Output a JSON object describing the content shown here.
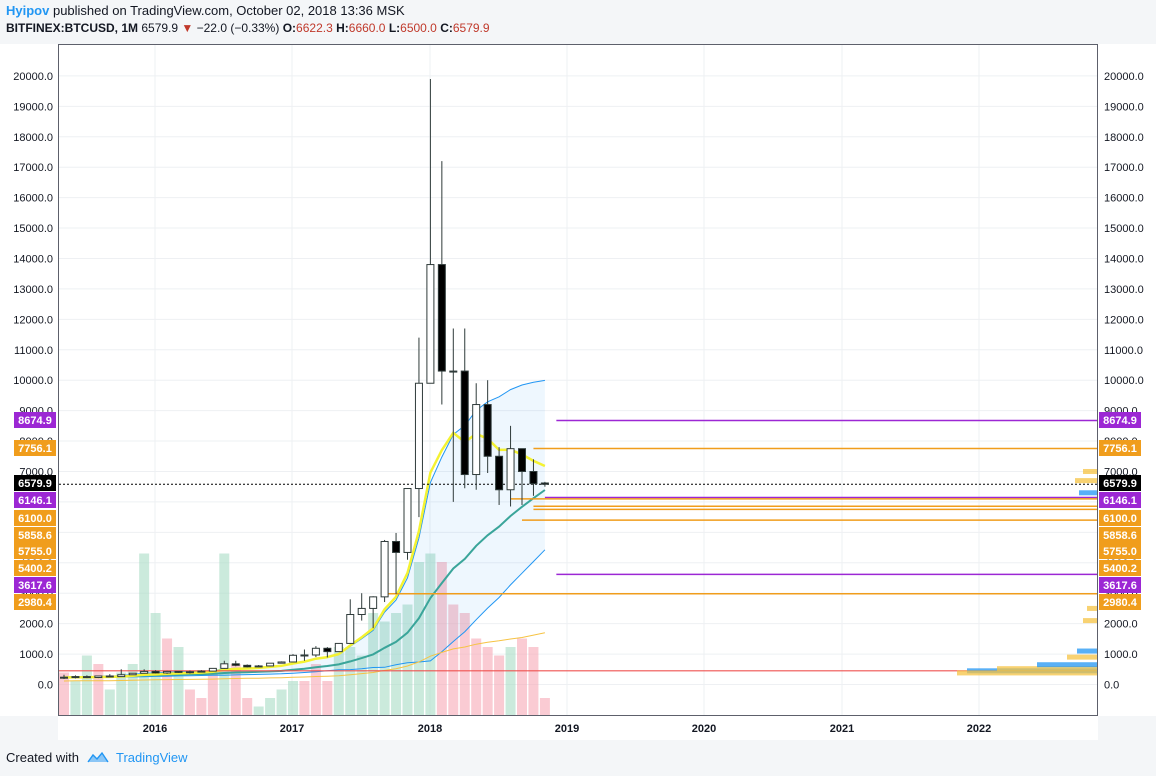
{
  "header": {
    "author": "Hyipov",
    "published": "published on TradingView.com, October 02, 2018 13:36 MSK"
  },
  "symbol": {
    "ticker": "BITFINEX:BTCUSD, 1M",
    "price": "6579.9",
    "change": "−22.0 (−0.33%)",
    "o_label": "O:",
    "o": "6622.3",
    "h_label": "H:",
    "h": "6660.0",
    "l_label": "L:",
    "l": "6500.0",
    "c_label": "C:",
    "c": "6579.9"
  },
  "footer": {
    "created": "Created with",
    "brand": "TradingView"
  },
  "chart_data": {
    "type": "candlestick",
    "ylim": [
      -1000,
      21000
    ],
    "y_ticks": [
      "20000.0",
      "19000.0",
      "18000.0",
      "17000.0",
      "16000.0",
      "15000.0",
      "14000.0",
      "13000.0",
      "12000.0",
      "11000.0",
      "10000.0",
      "9000.0",
      "8000.0",
      "7000.0",
      "6000.0",
      "5000.0",
      "4000.0",
      "3000.0",
      "2000.0",
      "1000.0",
      "0.0"
    ],
    "x_ticks": [
      "2016",
      "2017",
      "2018",
      "2019",
      "2020",
      "2021",
      "2022"
    ],
    "candles": [
      {
        "o": 240,
        "h": 320,
        "l": 180,
        "c": 230
      },
      {
        "o": 230,
        "h": 300,
        "l": 200,
        "c": 260
      },
      {
        "o": 260,
        "h": 300,
        "l": 210,
        "c": 230
      },
      {
        "o": 230,
        "h": 290,
        "l": 210,
        "c": 280
      },
      {
        "o": 280,
        "h": 340,
        "l": 250,
        "c": 260
      },
      {
        "o": 260,
        "h": 500,
        "l": 250,
        "c": 320
      },
      {
        "o": 320,
        "h": 350,
        "l": 320,
        "c": 370
      },
      {
        "o": 370,
        "h": 500,
        "l": 360,
        "c": 430
      },
      {
        "o": 430,
        "h": 470,
        "l": 360,
        "c": 380
      },
      {
        "o": 380,
        "h": 450,
        "l": 350,
        "c": 430
      },
      {
        "o": 430,
        "h": 440,
        "l": 380,
        "c": 410
      },
      {
        "o": 410,
        "h": 460,
        "l": 360,
        "c": 420
      },
      {
        "o": 420,
        "h": 470,
        "l": 400,
        "c": 440
      },
      {
        "o": 440,
        "h": 540,
        "l": 430,
        "c": 530
      },
      {
        "o": 530,
        "h": 780,
        "l": 520,
        "c": 680
      },
      {
        "o": 680,
        "h": 780,
        "l": 600,
        "c": 630
      },
      {
        "o": 630,
        "h": 660,
        "l": 560,
        "c": 580
      },
      {
        "o": 580,
        "h": 640,
        "l": 570,
        "c": 610
      },
      {
        "o": 610,
        "h": 700,
        "l": 600,
        "c": 700
      },
      {
        "o": 700,
        "h": 760,
        "l": 690,
        "c": 740
      },
      {
        "o": 740,
        "h": 1000,
        "l": 730,
        "c": 960
      },
      {
        "o": 960,
        "h": 1150,
        "l": 780,
        "c": 970
      },
      {
        "o": 970,
        "h": 1260,
        "l": 900,
        "c": 1190
      },
      {
        "o": 1190,
        "h": 1230,
        "l": 890,
        "c": 1080
      },
      {
        "o": 1080,
        "h": 1350,
        "l": 1070,
        "c": 1350
      },
      {
        "o": 1350,
        "h": 2800,
        "l": 1340,
        "c": 2300
      },
      {
        "o": 2300,
        "h": 3000,
        "l": 2100,
        "c": 2500
      },
      {
        "o": 2500,
        "h": 2900,
        "l": 1850,
        "c": 2880
      },
      {
        "o": 2880,
        "h": 4750,
        "l": 2710,
        "c": 4700
      },
      {
        "o": 4700,
        "h": 4980,
        "l": 2980,
        "c": 4340
      },
      {
        "o": 4340,
        "h": 6450,
        "l": 4100,
        "c": 6440
      },
      {
        "o": 6440,
        "h": 11400,
        "l": 5500,
        "c": 9900
      },
      {
        "o": 9900,
        "h": 19900,
        "l": 9900,
        "c": 13800
      },
      {
        "o": 13800,
        "h": 17200,
        "l": 9200,
        "c": 10300
      },
      {
        "o": 10300,
        "h": 11700,
        "l": 6000,
        "c": 10300
      },
      {
        "o": 10300,
        "h": 11700,
        "l": 6450,
        "c": 6900
      },
      {
        "o": 6900,
        "h": 9900,
        "l": 6400,
        "c": 9200
      },
      {
        "o": 9200,
        "h": 10000,
        "l": 6950,
        "c": 7500
      },
      {
        "o": 7500,
        "h": 7800,
        "l": 5900,
        "c": 6400
      },
      {
        "o": 6400,
        "h": 8500,
        "l": 5850,
        "c": 7750
      },
      {
        "o": 7750,
        "h": 7750,
        "l": 5900,
        "c": 7000
      },
      {
        "o": 7000,
        "h": 7400,
        "l": 6200,
        "c": 6600
      },
      {
        "o": 6622.3,
        "h": 6660,
        "l": 6500,
        "c": 6579.9
      }
    ],
    "volumes_rel": [
      0.25,
      0.2,
      0.35,
      0.3,
      0.15,
      0.25,
      0.3,
      0.95,
      0.6,
      0.45,
      0.4,
      0.15,
      0.1,
      0.25,
      0.95,
      0.3,
      0.1,
      0.05,
      0.1,
      0.15,
      0.2,
      0.2,
      0.3,
      0.2,
      0.4,
      0.4,
      0.35,
      0.6,
      0.55,
      0.6,
      0.65,
      0.9,
      0.95,
      0.9,
      0.65,
      0.6,
      0.45,
      0.4,
      0.35,
      0.4,
      0.45,
      0.4,
      0.1
    ],
    "vol_up": [
      false,
      true,
      true,
      false,
      true,
      true,
      true,
      true,
      true,
      false,
      true,
      false,
      false,
      false,
      true,
      false,
      false,
      true,
      true,
      true,
      true,
      false,
      false,
      false,
      true,
      true,
      true,
      true,
      true,
      true,
      true,
      true,
      true,
      false,
      false,
      false,
      false,
      false,
      false,
      true,
      false,
      false,
      false
    ],
    "levels": [
      {
        "value": 8674.9,
        "label": "8674.9",
        "color": "#9c27d4",
        "start": 43
      },
      {
        "value": 7756.1,
        "label": "7756.1",
        "color": "#f09d1c",
        "start": 41
      },
      {
        "value": 6579.9,
        "label": "6579.9",
        "color": "#000000",
        "start": 0,
        "dotted": true
      },
      {
        "value": 6146.1,
        "label": "6146.1",
        "color": "#9c27d4",
        "start": 42
      },
      {
        "value": 6100.0,
        "label": "6100.0",
        "color": "#f09d1c",
        "start": 39
      },
      {
        "value": 5858.6,
        "label": "5858.6",
        "color": "#f09d1c",
        "start": 41
      },
      {
        "value": 5755.0,
        "label": "5755.0",
        "color": "#f09d1c",
        "start": 41
      },
      {
        "value": 5400.2,
        "label": "5400.2",
        "color": "#f09d1c",
        "start": 40
      },
      {
        "value": 3617.6,
        "label": "3617.6",
        "color": "#9c27d4",
        "start": 43
      },
      {
        "value": 2980.4,
        "label": "2980.4",
        "color": "#f09d1c",
        "start": 28
      }
    ],
    "label_slots": [
      8674.9,
      7756.1,
      6579.9,
      6146.1,
      6100.0,
      5858.6,
      5755.0,
      5400.2,
      3617.6,
      2980.4
    ],
    "support_line": {
      "value": 450,
      "color": "#ef5350"
    }
  }
}
